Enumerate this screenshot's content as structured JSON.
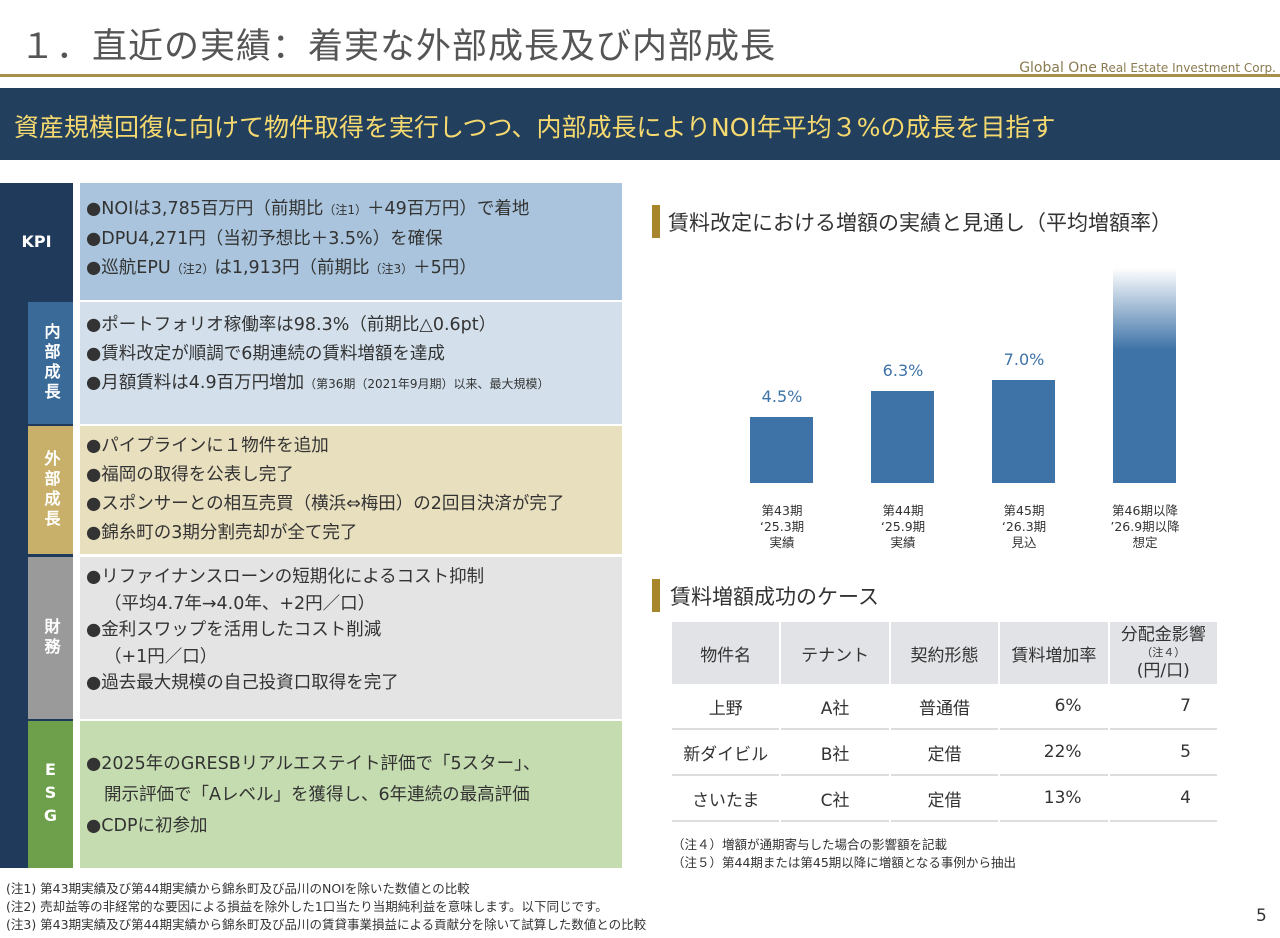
{
  "header": {
    "title": "１．直近の実績：着実な外部成長及び内部成長",
    "logo_main": "Global One",
    "logo_sub": "Real Estate Investment Corp."
  },
  "banner": "資産規模回復に向けて物件取得を実行しつつ、内部成長によりNOI年平均３%の成長を目指す",
  "sections": [
    {
      "label": "KPI",
      "items": [
        "●NOIは3,785百万円（前期比",
        "（注1）",
        "＋49百万円）で着地",
        "●DPU4,271円（当初予想比＋3.5%）を確保",
        "●巡航EPU",
        "（注2）",
        "は1,913円（前期比",
        "（注3）",
        "＋5円）"
      ]
    },
    {
      "label": "内部成長",
      "items": [
        "●ポートフォリオ稼働率は98.3%（前期比△0.6pt）",
        "●賃料改定が順調で6期連続の賃料増額を達成",
        "●月額賃料は4.9百万円増加",
        "（第36期（2021年9月期）以来、最大規模）"
      ]
    },
    {
      "label": "外部成長",
      "items": [
        "●パイプラインに１物件を追加",
        "●福岡の取得を公表し完了",
        "●スポンサーとの相互売買（横浜⇔梅田）の2回目決済が完了",
        "●錦糸町の3期分割売却が全て完了"
      ]
    },
    {
      "label": "財務",
      "items": [
        "●リファイナンスローンの短期化によるコスト抑制",
        "（平均4.7年→4.0年、+2円／口）",
        "●金利スワップを活用したコスト削減",
        "（+1円／口）",
        "●過去最大規模の自己投資口取得を完了"
      ]
    },
    {
      "label": "ESG",
      "items": [
        "●2025年のGRESBリアルエステイト評価で「5スター」、",
        "開示評価で「Aレベル」を獲得し、6年連続の最高評価",
        "●CDPに初参加"
      ]
    }
  ],
  "chart_data": {
    "type": "bar",
    "title": "賃料改定における増額の実績と見通し（平均増額率）",
    "categories": [
      [
        "第43期",
        "‘25.3期",
        "実績"
      ],
      [
        "第44期",
        "‘25.9期",
        "実績"
      ],
      [
        "第45期",
        "‘26.3期",
        "見込"
      ],
      [
        "第46期以降",
        "’26.9期以降",
        "想定"
      ]
    ],
    "values": [
      4.5,
      6.3,
      7.0,
      null
    ],
    "labels": [
      "4.5%",
      "6.3%",
      "7.0%",
      ""
    ],
    "ylim": [
      0,
      11.5
    ],
    "bar_color": "#3e73a8"
  },
  "table": {
    "title": "賃料増額成功のケース",
    "headers": [
      "物件名",
      "テナント",
      "契約形態",
      "賃料増加率",
      "分配金影響",
      "（注４）",
      "(円/口)"
    ],
    "rows": [
      [
        "上野",
        "A社",
        "普通借",
        "6%",
        "7"
      ],
      [
        "新ダイビル",
        "B社",
        "定借",
        "22%",
        "5"
      ],
      [
        "さいたま",
        "C社",
        "定借",
        "13%",
        "4"
      ]
    ],
    "notes": [
      "（注４）増額が通期寄与した場合の影響額を記載",
      "（注５）第44期または第45期以降に増額となる事例から抽出"
    ]
  },
  "footnotes": [
    "(注1) 第43期実績及び第44期実績から錦糸町及び品川のNOIを除いた数値との比較",
    "(注2) 売却益等の非経常的な要因による損益を除外した1口当たり当期純利益を意味します。以下同じです。",
    "(注3) 第43期実績及び第44期実績から錦糸町及び品川の賃貸事業損益による貢献分を除いて試算した数値との比較"
  ],
  "page_number": "5"
}
